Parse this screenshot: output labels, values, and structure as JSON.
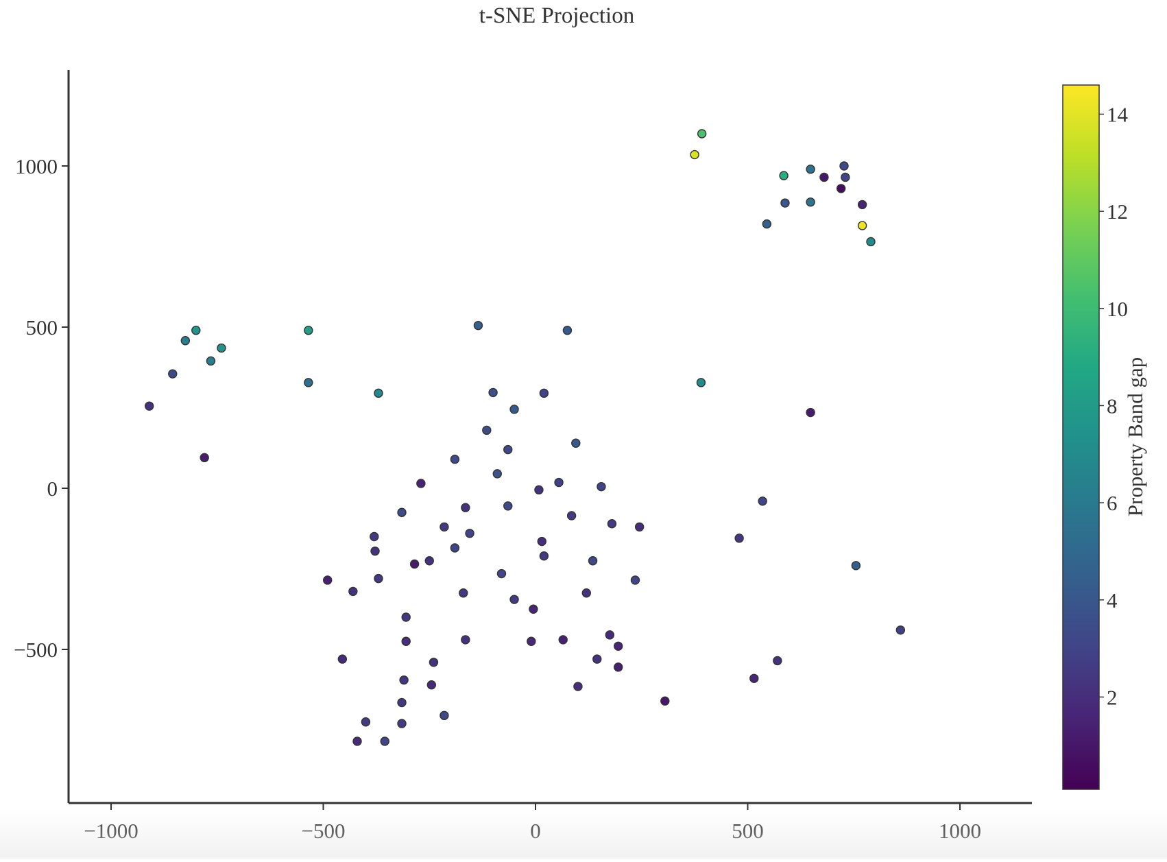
{
  "chart_data": {
    "type": "scatter",
    "title": "t-SNE Projection",
    "xlabel": "",
    "ylabel": "",
    "xlim": [
      -1100,
      1170
    ],
    "ylim": [
      -970,
      1300
    ],
    "xticks": [
      -1000,
      -500,
      0,
      500,
      1000
    ],
    "yticks": [
      -500,
      0,
      500,
      1000
    ],
    "xtick_labels": [
      "−1000",
      "−500",
      "0",
      "500",
      "1000"
    ],
    "ytick_labels": [
      "−500",
      "0",
      "500",
      "1000"
    ],
    "grid": false,
    "colorbar": {
      "label": "Property Band gap",
      "colormap": "viridis",
      "range": [
        0.1,
        14.6
      ],
      "ticks": [
        2,
        4,
        6,
        8,
        10,
        12,
        14
      ],
      "tick_labels": [
        "2",
        "4",
        "6",
        "8",
        "10",
        "12",
        "14"
      ]
    },
    "points": [
      {
        "x": 392,
        "y": 1100,
        "c": 10.4
      },
      {
        "x": 375,
        "y": 1035,
        "c": 13.8
      },
      {
        "x": 585,
        "y": 970,
        "c": 9.2
      },
      {
        "x": 648,
        "y": 990,
        "c": 5.5
      },
      {
        "x": 727,
        "y": 1000,
        "c": 3.2
      },
      {
        "x": 730,
        "y": 965,
        "c": 3.0
      },
      {
        "x": 680,
        "y": 965,
        "c": 1.0
      },
      {
        "x": 720,
        "y": 930,
        "c": 0.6
      },
      {
        "x": 770,
        "y": 880,
        "c": 1.6
      },
      {
        "x": 588,
        "y": 885,
        "c": 4.0
      },
      {
        "x": 648,
        "y": 888,
        "c": 5.6
      },
      {
        "x": 545,
        "y": 820,
        "c": 4.6
      },
      {
        "x": 770,
        "y": 815,
        "c": 14.2
      },
      {
        "x": 790,
        "y": 765,
        "c": 7.0
      },
      {
        "x": 648,
        "y": 235,
        "c": 1.2
      },
      {
        "x": 390,
        "y": 328,
        "c": 7.0
      },
      {
        "x": -800,
        "y": 490,
        "c": 7.6
      },
      {
        "x": -825,
        "y": 458,
        "c": 6.2
      },
      {
        "x": -740,
        "y": 435,
        "c": 7.4
      },
      {
        "x": -765,
        "y": 395,
        "c": 6.2
      },
      {
        "x": -855,
        "y": 355,
        "c": 3.4
      },
      {
        "x": -910,
        "y": 255,
        "c": 2.2
      },
      {
        "x": -780,
        "y": 95,
        "c": 1.2
      },
      {
        "x": -535,
        "y": 490,
        "c": 8.2
      },
      {
        "x": -535,
        "y": 328,
        "c": 5.4
      },
      {
        "x": -370,
        "y": 295,
        "c": 6.8
      },
      {
        "x": -135,
        "y": 505,
        "c": 4.6
      },
      {
        "x": 75,
        "y": 490,
        "c": 4.2
      },
      {
        "x": -100,
        "y": 297,
        "c": 3.6
      },
      {
        "x": 20,
        "y": 295,
        "c": 3.0
      },
      {
        "x": -50,
        "y": 245,
        "c": 4.2
      },
      {
        "x": -115,
        "y": 180,
        "c": 3.4
      },
      {
        "x": 95,
        "y": 140,
        "c": 4.0
      },
      {
        "x": -65,
        "y": 120,
        "c": 3.2
      },
      {
        "x": -190,
        "y": 90,
        "c": 3.2
      },
      {
        "x": -90,
        "y": 45,
        "c": 3.8
      },
      {
        "x": -270,
        "y": 15,
        "c": 1.5
      },
      {
        "x": 55,
        "y": 18,
        "c": 2.8
      },
      {
        "x": 155,
        "y": 5,
        "c": 3.0
      },
      {
        "x": 8,
        "y": -5,
        "c": 2.2
      },
      {
        "x": -315,
        "y": -75,
        "c": 3.4
      },
      {
        "x": -165,
        "y": -60,
        "c": 2.2
      },
      {
        "x": -65,
        "y": -55,
        "c": 3.2
      },
      {
        "x": 85,
        "y": -85,
        "c": 2.6
      },
      {
        "x": 180,
        "y": -110,
        "c": 2.6
      },
      {
        "x": 245,
        "y": -120,
        "c": 2.0
      },
      {
        "x": -215,
        "y": -120,
        "c": 2.6
      },
      {
        "x": -155,
        "y": -140,
        "c": 3.0
      },
      {
        "x": -380,
        "y": -150,
        "c": 2.6
      },
      {
        "x": 15,
        "y": -165,
        "c": 2.0
      },
      {
        "x": -190,
        "y": -185,
        "c": 3.0
      },
      {
        "x": -378,
        "y": -195,
        "c": 2.2
      },
      {
        "x": 20,
        "y": -210,
        "c": 2.6
      },
      {
        "x": 135,
        "y": -225,
        "c": 3.2
      },
      {
        "x": -250,
        "y": -225,
        "c": 2.2
      },
      {
        "x": -285,
        "y": -235,
        "c": 1.2
      },
      {
        "x": -80,
        "y": -265,
        "c": 3.0
      },
      {
        "x": -370,
        "y": -280,
        "c": 2.4
      },
      {
        "x": -490,
        "y": -285,
        "c": 1.4
      },
      {
        "x": 235,
        "y": -285,
        "c": 3.0
      },
      {
        "x": -430,
        "y": -320,
        "c": 2.2
      },
      {
        "x": -170,
        "y": -325,
        "c": 2.6
      },
      {
        "x": 120,
        "y": -325,
        "c": 2.2
      },
      {
        "x": -50,
        "y": -345,
        "c": 2.6
      },
      {
        "x": -5,
        "y": -375,
        "c": 1.6
      },
      {
        "x": -305,
        "y": -400,
        "c": 2.4
      },
      {
        "x": 175,
        "y": -455,
        "c": 1.8
      },
      {
        "x": -165,
        "y": -470,
        "c": 2.2
      },
      {
        "x": -305,
        "y": -475,
        "c": 2.0
      },
      {
        "x": -10,
        "y": -475,
        "c": 1.8
      },
      {
        "x": 65,
        "y": -470,
        "c": 1.4
      },
      {
        "x": 195,
        "y": -490,
        "c": 1.6
      },
      {
        "x": -455,
        "y": -530,
        "c": 1.8
      },
      {
        "x": 145,
        "y": -530,
        "c": 2.2
      },
      {
        "x": -240,
        "y": -540,
        "c": 2.2
      },
      {
        "x": 195,
        "y": -555,
        "c": 1.4
      },
      {
        "x": -310,
        "y": -595,
        "c": 2.4
      },
      {
        "x": -245,
        "y": -610,
        "c": 1.8
      },
      {
        "x": 100,
        "y": -615,
        "c": 2.0
      },
      {
        "x": 305,
        "y": -660,
        "c": 1.0
      },
      {
        "x": -315,
        "y": -665,
        "c": 2.6
      },
      {
        "x": -215,
        "y": -705,
        "c": 3.2
      },
      {
        "x": -400,
        "y": -725,
        "c": 2.6
      },
      {
        "x": -315,
        "y": -730,
        "c": 2.6
      },
      {
        "x": -420,
        "y": -785,
        "c": 1.8
      },
      {
        "x": -355,
        "y": -785,
        "c": 3.0
      },
      {
        "x": 535,
        "y": -40,
        "c": 3.0
      },
      {
        "x": 480,
        "y": -155,
        "c": 2.4
      },
      {
        "x": 755,
        "y": -240,
        "c": 4.4
      },
      {
        "x": 860,
        "y": -440,
        "c": 2.8
      },
      {
        "x": 570,
        "y": -535,
        "c": 2.2
      },
      {
        "x": 515,
        "y": -590,
        "c": 1.6
      }
    ]
  }
}
